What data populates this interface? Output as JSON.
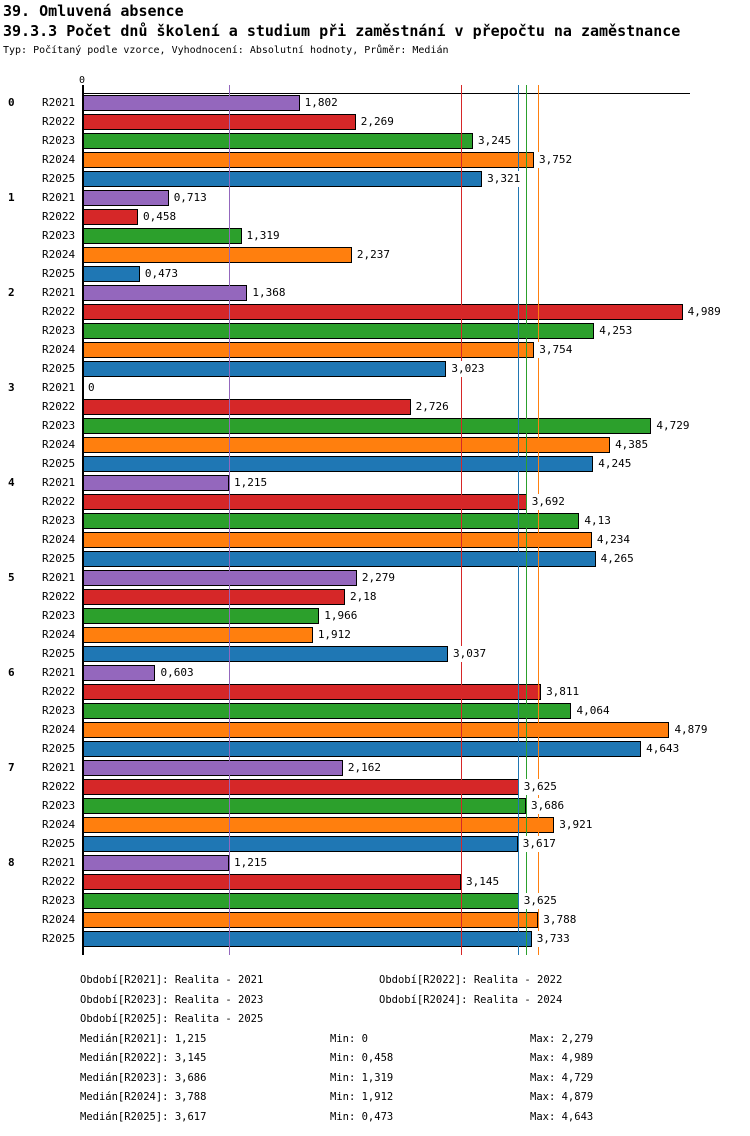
{
  "header": {
    "title": "39. Omluvená absence",
    "subtitle": "39.3.3 Počet dnů školení a studium při zaměstnání v přepočtu na zaměstnance",
    "meta": "Typ: Počítaný podle vzorce, Vyhodnocení: Absolutní hodnoty, Průměr: Medián"
  },
  "chart_data": {
    "type": "bar",
    "orientation": "horizontal",
    "title": "39.3.3 Počet dnů školení a studium při zaměstnání v přepočtu na zaměstnance",
    "xlabel": "",
    "ylabel": "",
    "axis": {
      "min": 0,
      "max": 5.05,
      "zero_label": "0",
      "grid": false
    },
    "legend_position": "bottom",
    "series": [
      {
        "id": "R2021",
        "name": "Realita - 2021",
        "color": "#9467bd",
        "median": 1.215
      },
      {
        "id": "R2022",
        "name": "Realita - 2022",
        "color": "#d62728",
        "median": 3.145
      },
      {
        "id": "R2023",
        "name": "Realita - 2023",
        "color": "#2ca02c",
        "median": 3.686
      },
      {
        "id": "R2024",
        "name": "Realita - 2024",
        "color": "#ff7f0e",
        "median": 3.788
      },
      {
        "id": "R2025",
        "name": "Realita - 2025",
        "color": "#1f77b4",
        "median": 3.617
      }
    ],
    "categories": [
      "0",
      "1",
      "2",
      "3",
      "4",
      "5",
      "6",
      "7",
      "8"
    ],
    "groups": [
      {
        "label": "0",
        "values": [
          1.802,
          2.269,
          3.245,
          3.752,
          3.321
        ],
        "labels": [
          "1,802",
          "2,269",
          "3,245",
          "3,752",
          "3,321"
        ]
      },
      {
        "label": "1",
        "values": [
          0.713,
          0.458,
          1.319,
          2.237,
          0.473
        ],
        "labels": [
          "0,713",
          "0,458",
          "1,319",
          "2,237",
          "0,473"
        ]
      },
      {
        "label": "2",
        "values": [
          1.368,
          4.989,
          4.253,
          3.754,
          3.023
        ],
        "labels": [
          "1,368",
          "4,989",
          "4,253",
          "3,754",
          "3,023"
        ]
      },
      {
        "label": "3",
        "values": [
          0,
          2.726,
          4.729,
          4.385,
          4.245
        ],
        "labels": [
          "0",
          "2,726",
          "4,729",
          "4,385",
          "4,245"
        ]
      },
      {
        "label": "4",
        "values": [
          1.215,
          3.692,
          4.13,
          4.234,
          4.265
        ],
        "labels": [
          "1,215",
          "3,692",
          "4,13",
          "4,234",
          "4,265"
        ]
      },
      {
        "label": "5",
        "values": [
          2.279,
          2.18,
          1.966,
          1.912,
          3.037
        ],
        "labels": [
          "2,279",
          "2,18",
          "1,966",
          "1,912",
          "3,037"
        ]
      },
      {
        "label": "6",
        "values": [
          0.603,
          3.811,
          4.064,
          4.879,
          4.643
        ],
        "labels": [
          "0,603",
          "3,811",
          "4,064",
          "4,879",
          "4,643"
        ]
      },
      {
        "label": "7",
        "values": [
          2.162,
          3.625,
          3.686,
          3.921,
          3.617
        ],
        "labels": [
          "2,162",
          "3,625",
          "3,686",
          "3,921",
          "3,617"
        ]
      },
      {
        "label": "8",
        "values": [
          1.215,
          3.145,
          3.625,
          3.788,
          3.733
        ],
        "labels": [
          "1,215",
          "3,145",
          "3,625",
          "3,788",
          "3,733"
        ]
      }
    ]
  },
  "footer": {
    "legend": [
      "Období[R2021]: Realita - 2021",
      "Období[R2022]: Realita - 2022",
      "Období[R2023]: Realita - 2023",
      "Období[R2024]: Realita - 2024",
      "Období[R2025]: Realita - 2025"
    ],
    "stats": [
      {
        "median": "Medián[R2021]: 1,215",
        "min": "Min: 0",
        "max": "Max: 2,279"
      },
      {
        "median": "Medián[R2022]: 3,145",
        "min": "Min: 0,458",
        "max": "Max: 4,989"
      },
      {
        "median": "Medián[R2023]: 3,686",
        "min": "Min: 1,319",
        "max": "Max: 4,729"
      },
      {
        "median": "Medián[R2024]: 3,788",
        "min": "Min: 1,912",
        "max": "Max: 4,879"
      },
      {
        "median": "Medián[R2025]: 3,617",
        "min": "Min: 0,473",
        "max": "Max: 4,643"
      }
    ]
  }
}
